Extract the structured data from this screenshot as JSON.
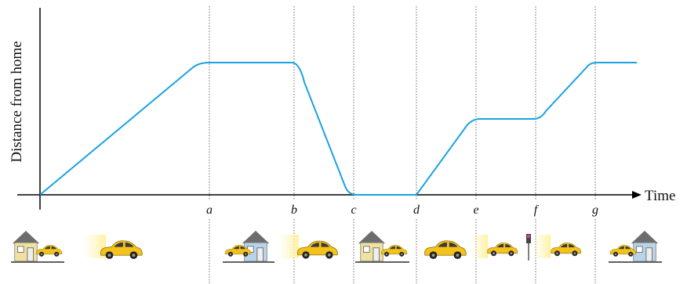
{
  "axes": {
    "y_label": "Distance from home",
    "x_label": "Time"
  },
  "markers": [
    "a",
    "b",
    "c",
    "d",
    "e",
    "f",
    "g"
  ]
}
